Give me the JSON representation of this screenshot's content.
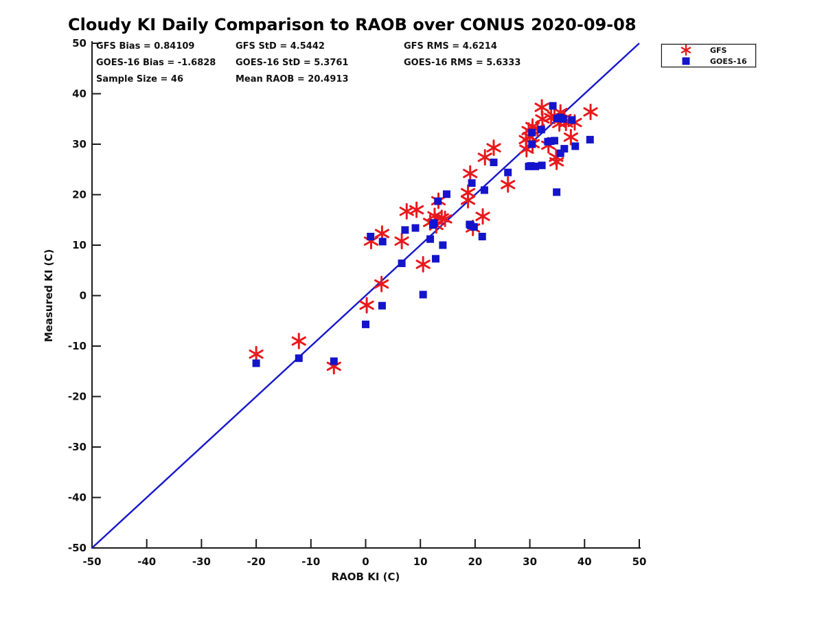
{
  "title": "Cloudy KI Daily Comparison to RAOB over CONUS 2020-09-08",
  "stats": {
    "gfs_bias": "GFS Bias = 0.84109",
    "gfs_std": "GFS StD = 4.5442",
    "gfs_rms": "GFS RMS = 4.6214",
    "goes_bias": "GOES-16 Bias = -1.6828",
    "goes_std": "GOES-16 StD = 5.3761",
    "goes_rms": "GOES-16 RMS = 5.6333",
    "sample_size": "Sample Size = 46",
    "mean_raob": "Mean RAOB = 20.4913"
  },
  "legend": {
    "items": [
      {
        "label": "GFS",
        "marker": "asterisk",
        "color": "#e8191c"
      },
      {
        "label": "GOES-16",
        "marker": "square",
        "color": "#1414cc"
      }
    ]
  },
  "chart_data": {
    "type": "scatter",
    "title": "Cloudy KI Daily Comparison to RAOB over CONUS 2020-09-08",
    "xlabel": "RAOB KI (C)",
    "ylabel": "Measured KI (C)",
    "xlim": [
      -50,
      50
    ],
    "ylim": [
      -50,
      50
    ],
    "xticks": [
      -50,
      -40,
      -30,
      -20,
      -10,
      0,
      10,
      20,
      30,
      40,
      50
    ],
    "yticks": [
      -50,
      -40,
      -30,
      -20,
      -10,
      0,
      10,
      20,
      30,
      40,
      50
    ],
    "grid": false,
    "legend_position": "top-right-outside",
    "identity_line": {
      "from": [
        -50,
        -50
      ],
      "to": [
        50,
        50
      ],
      "color": "#1a1acc",
      "width": 2.5
    },
    "axis_color": "#1a1a1a",
    "series": [
      {
        "name": "GFS",
        "marker": "asterisk",
        "color": "#e8191c",
        "points": [
          [
            -20,
            -11.6
          ],
          [
            -12.2,
            -9
          ],
          [
            -5.8,
            -14
          ],
          [
            0.2,
            -1.9
          ],
          [
            2.9,
            2.3
          ],
          [
            1,
            10.8
          ],
          [
            3,
            12.3
          ],
          [
            6.6,
            10.8
          ],
          [
            7.5,
            16.7
          ],
          [
            9.3,
            17
          ],
          [
            10.5,
            6.2
          ],
          [
            11.8,
            14.5
          ],
          [
            12.6,
            15.8
          ],
          [
            12.9,
            13.9
          ],
          [
            14.5,
            15.2
          ],
          [
            13.9,
            15.4
          ],
          [
            13.3,
            18.8
          ],
          [
            18.7,
            20.4
          ],
          [
            18.7,
            18.9
          ],
          [
            19.6,
            13.4
          ],
          [
            21.4,
            15.7
          ],
          [
            19.1,
            24.2
          ],
          [
            21.8,
            27.4
          ],
          [
            23.4,
            29.3
          ],
          [
            26,
            22
          ],
          [
            29.3,
            30.9
          ],
          [
            30.5,
            30.1
          ],
          [
            29.4,
            29
          ],
          [
            30,
            31.5
          ],
          [
            29.8,
            32.7
          ],
          [
            30.5,
            33.5
          ],
          [
            31.4,
            33.1
          ],
          [
            32.2,
            37.3
          ],
          [
            32.3,
            35
          ],
          [
            33.9,
            35.3
          ],
          [
            34.5,
            35.6
          ],
          [
            35.6,
            36.3
          ],
          [
            36.3,
            35.1
          ],
          [
            41.1,
            36.4
          ],
          [
            35.4,
            34.1
          ],
          [
            36.6,
            34.2
          ],
          [
            38.2,
            34.3
          ],
          [
            37.5,
            31.4
          ],
          [
            33.4,
            29.8
          ],
          [
            34.8,
            27.4
          ],
          [
            34.9,
            26.5
          ]
        ]
      },
      {
        "name": "GOES-16",
        "marker": "square",
        "color": "#1414cc",
        "points": [
          [
            -20,
            -13.4
          ],
          [
            -12.2,
            -12.4
          ],
          [
            -5.8,
            -13
          ],
          [
            0,
            -5.7
          ],
          [
            3,
            -2
          ],
          [
            0.9,
            11.7
          ],
          [
            3.1,
            10.7
          ],
          [
            6.6,
            6.4
          ],
          [
            7.2,
            13
          ],
          [
            9.1,
            13.4
          ],
          [
            10.5,
            0.2
          ],
          [
            11.8,
            11.2
          ],
          [
            12.5,
            14.4
          ],
          [
            12.3,
            14
          ],
          [
            12.8,
            7.3
          ],
          [
            14.1,
            10
          ],
          [
            13.2,
            18.7
          ],
          [
            14.8,
            20.1
          ],
          [
            19,
            14.1
          ],
          [
            19.8,
            13.6
          ],
          [
            19.2,
            13.9
          ],
          [
            21.3,
            11.7
          ],
          [
            19.4,
            22.3
          ],
          [
            21.7,
            20.9
          ],
          [
            23.4,
            26.4
          ],
          [
            26,
            24.4
          ],
          [
            29.8,
            25.6
          ],
          [
            30.2,
            25.7
          ],
          [
            31,
            25.6
          ],
          [
            32.2,
            25.8
          ],
          [
            34.9,
            20.5
          ],
          [
            30.4,
            32.3
          ],
          [
            32.1,
            32.9
          ],
          [
            30.4,
            30
          ],
          [
            33.3,
            30.5
          ],
          [
            33.8,
            30.6
          ],
          [
            34.5,
            30.7
          ],
          [
            34.2,
            37.6
          ],
          [
            35.6,
            35.3
          ],
          [
            36.1,
            35
          ],
          [
            35,
            35.1
          ],
          [
            37.7,
            34.8
          ],
          [
            36.3,
            29.1
          ],
          [
            35.6,
            28.2
          ],
          [
            38.3,
            29.6
          ],
          [
            41,
            30.9
          ]
        ]
      }
    ]
  }
}
